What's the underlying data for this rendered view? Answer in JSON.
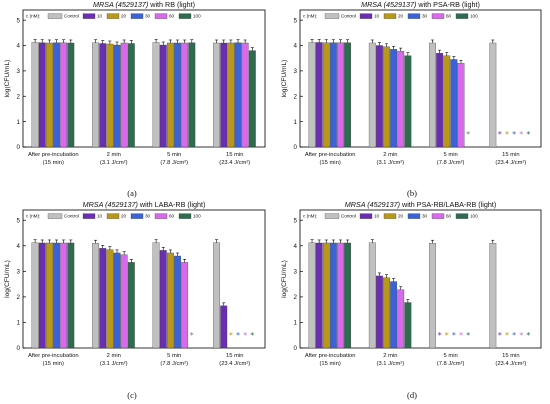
{
  "colors": {
    "Control": "#c0c0c0",
    "10": "#6a2fb0",
    "20": "#b8981a",
    "30": "#3b63d6",
    "60": "#d66ae8",
    "100": "#2f6b4f",
    "axis": "#000000",
    "star_grey": "#7a7a7a"
  },
  "star_glyph": "*",
  "chart_data": [
    {
      "type": "bar",
      "panel_label": "(a)",
      "title_italic": "MRSA (4529137)",
      "title_rest": " with RB (light)",
      "ylabel": "log(CFU/mL)",
      "ylim": [
        0,
        5.4
      ],
      "yticks": [
        "0",
        "1",
        "2",
        "3",
        "4",
        "5"
      ],
      "legend_title": "c (nM):",
      "legend": [
        "Control",
        "10",
        "20",
        "30",
        "60",
        "100"
      ],
      "categories": [
        {
          "line1": "After pre-incubation",
          "line2": "(15 min)"
        },
        {
          "line1": "2 min",
          "line2": "(3.1 J/cm²)"
        },
        {
          "line1": "5 min",
          "line2": "(7.8 J/cm²)"
        },
        {
          "line1": "15 min",
          "line2": "(23.4 J/cm²)"
        }
      ],
      "values": [
        [
          4.12,
          4.11,
          4.1,
          4.11,
          4.11,
          4.1
        ],
        [
          4.11,
          4.08,
          4.06,
          4.02,
          4.1,
          4.08
        ],
        [
          4.12,
          4.02,
          4.1,
          4.1,
          4.1,
          4.11
        ],
        [
          4.1,
          4.1,
          4.1,
          4.11,
          4.1,
          3.8
        ]
      ],
      "stars": [
        [],
        [],
        [],
        []
      ]
    },
    {
      "type": "bar",
      "panel_label": "(b)",
      "title_italic": "MRSA (4529137)",
      "title_rest": " with PSA-RB (light)",
      "ylabel": "log(CFU/mL)",
      "ylim": [
        0,
        5.4
      ],
      "yticks": [
        "0",
        "1",
        "2",
        "3",
        "4",
        "5"
      ],
      "legend_title": "c (nM):",
      "legend": [
        "Control",
        "10",
        "20",
        "30",
        "60",
        "100"
      ],
      "categories": [
        {
          "line1": "After pre-incubation",
          "line2": "(15 min)"
        },
        {
          "line1": "2 min",
          "line2": "(3.1 J/cm²)"
        },
        {
          "line1": "5 min",
          "line2": "(7.8 J/cm²)"
        },
        {
          "line1": "15 min",
          "line2": "(23.4 J/cm²)"
        }
      ],
      "values": [
        [
          4.12,
          4.12,
          4.11,
          4.11,
          4.11,
          4.11
        ],
        [
          4.1,
          4.0,
          3.95,
          3.85,
          3.78,
          3.6
        ],
        [
          4.1,
          3.7,
          3.6,
          3.45,
          3.3,
          null
        ],
        [
          4.1,
          null,
          null,
          null,
          null,
          null
        ]
      ],
      "stars": [
        [],
        [],
        [
          "100"
        ],
        [
          "10",
          "20",
          "30",
          "60",
          "100"
        ]
      ]
    },
    {
      "type": "bar",
      "panel_label": "(c)",
      "title_italic": "MRSA (4529137)",
      "title_rest": " with LABA-RB (light)",
      "ylabel": "log(CFU/mL)",
      "ylim": [
        0,
        5.4
      ],
      "yticks": [
        "0",
        "1",
        "2",
        "3",
        "4",
        "5"
      ],
      "legend_title": "c (nM):",
      "legend": [
        "Control",
        "10",
        "20",
        "30",
        "60",
        "100"
      ],
      "categories": [
        {
          "line1": "After pre-incubation",
          "line2": "(15 min)"
        },
        {
          "line1": "2 min",
          "line2": "(3.1 J/cm²)"
        },
        {
          "line1": "5 min",
          "line2": "(7.8 J/cm²)"
        },
        {
          "line1": "15 min",
          "line2": "(23.4 J/cm²)"
        }
      ],
      "values": [
        [
          4.12,
          4.11,
          4.11,
          4.11,
          4.11,
          4.11
        ],
        [
          4.1,
          3.9,
          3.85,
          3.72,
          3.65,
          3.35
        ],
        [
          4.12,
          3.82,
          3.72,
          3.6,
          3.35,
          null
        ],
        [
          4.12,
          1.65,
          null,
          null,
          null,
          null
        ]
      ],
      "stars": [
        [],
        [],
        [
          "100"
        ],
        [
          "20",
          "30",
          "60",
          "100"
        ]
      ]
    },
    {
      "type": "bar",
      "panel_label": "(d)",
      "title_italic": "MRSA (4529137)",
      "title_rest": " with PSA-RB/LABA-RB (light)",
      "ylabel": "log(CFU/mL)",
      "ylim": [
        0,
        5.4
      ],
      "yticks": [
        "0",
        "1",
        "2",
        "3",
        "4",
        "5"
      ],
      "legend_title": "c (nM):",
      "legend": [
        "Control",
        "10",
        "20",
        "30",
        "60",
        "100"
      ],
      "categories": [
        {
          "line1": "After pre-incubation",
          "line2": "(15 min)"
        },
        {
          "line1": "2 min",
          "line2": "(3.1 J/cm²)"
        },
        {
          "line1": "5 min",
          "line2": "(7.8 J/cm²)"
        },
        {
          "line1": "15 min",
          "line2": "(23.4 J/cm²)"
        }
      ],
      "values": [
        [
          4.12,
          4.11,
          4.11,
          4.11,
          4.11,
          4.11
        ],
        [
          4.12,
          2.82,
          2.75,
          2.6,
          2.28,
          1.78
        ],
        [
          4.1,
          null,
          null,
          null,
          null,
          null
        ],
        [
          4.1,
          null,
          null,
          null,
          null,
          null
        ]
      ],
      "stars": [
        [],
        [],
        [
          "10",
          "20",
          "30",
          "60",
          "100"
        ],
        [
          "10",
          "20",
          "30",
          "60",
          "100"
        ]
      ]
    }
  ]
}
